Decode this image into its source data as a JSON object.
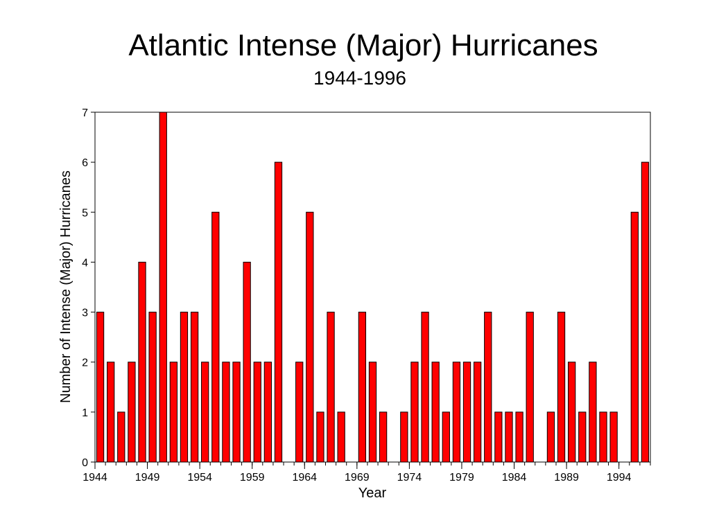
{
  "chart_data": {
    "type": "bar",
    "title": "Atlantic Intense (Major) Hurricanes",
    "subtitle": "1944-1996",
    "xlabel": "Year",
    "ylabel": "Number of Intense (Major)  Hurricanes",
    "ylim": [
      0,
      7
    ],
    "yticks": [
      0,
      1,
      2,
      3,
      4,
      5,
      6,
      7
    ],
    "xtick_labels": [
      "1944",
      "1949",
      "1954",
      "1959",
      "1964",
      "1969",
      "1974",
      "1979",
      "1984",
      "1989",
      "1994"
    ],
    "categories": [
      1944,
      1945,
      1946,
      1947,
      1948,
      1949,
      1950,
      1951,
      1952,
      1953,
      1954,
      1955,
      1956,
      1957,
      1958,
      1959,
      1960,
      1961,
      1962,
      1963,
      1964,
      1965,
      1966,
      1967,
      1968,
      1969,
      1970,
      1971,
      1972,
      1973,
      1974,
      1975,
      1976,
      1977,
      1978,
      1979,
      1980,
      1981,
      1982,
      1983,
      1984,
      1985,
      1986,
      1987,
      1988,
      1989,
      1990,
      1991,
      1992,
      1993,
      1994,
      1995,
      1996
    ],
    "values": [
      3,
      2,
      1,
      2,
      4,
      3,
      7,
      2,
      3,
      3,
      2,
      5,
      2,
      2,
      4,
      2,
      2,
      6,
      0,
      2,
      5,
      1,
      3,
      1,
      0,
      3,
      2,
      1,
      0,
      1,
      2,
      3,
      2,
      1,
      2,
      2,
      2,
      3,
      1,
      1,
      1,
      3,
      0,
      1,
      3,
      2,
      1,
      2,
      1,
      1,
      0,
      5,
      6
    ],
    "bar_color": "#ff0000",
    "grid": false
  }
}
